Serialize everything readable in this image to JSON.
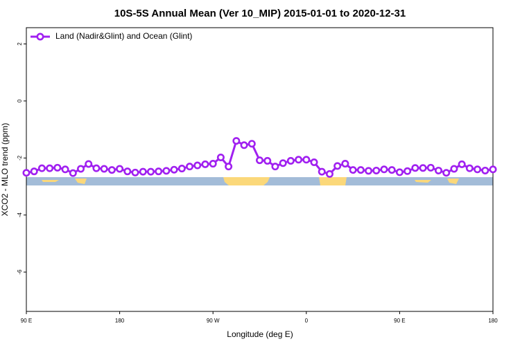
{
  "chart_data": {
    "type": "line",
    "title": "10S-5S Annual Mean (Ver 10_MIP)   2015-01-01 to 2020-12-31",
    "x_label": "Longitude (deg E)",
    "y_label": "XCO2 - MLO trend (ppm)",
    "x": [
      90,
      97.5,
      105,
      112.5,
      120,
      127.5,
      135,
      142.5,
      150,
      157.5,
      165,
      172.5,
      180,
      187.5,
      195,
      202.5,
      210,
      217.5,
      225,
      232.5,
      240,
      247.5,
      255,
      262.5,
      270,
      277.5,
      285,
      292.5,
      300,
      307.5,
      315,
      322.5,
      330,
      337.5,
      345,
      352.5,
      360,
      367.5,
      375,
      382.5,
      390,
      397.5,
      405,
      412.5,
      420,
      427.5,
      435,
      442.5,
      450,
      457.5,
      465,
      472.5,
      480,
      487.5,
      495,
      502.5,
      510,
      517.5,
      525,
      532.5,
      540
    ],
    "series": [
      {
        "name": "Land (Nadir&Glint) and Ocean (Glint)",
        "color": "#a020f0",
        "values": [
          -2.52,
          -2.47,
          -2.36,
          -2.36,
          -2.34,
          -2.4,
          -2.53,
          -2.38,
          -2.21,
          -2.36,
          -2.38,
          -2.42,
          -2.38,
          -2.47,
          -2.51,
          -2.48,
          -2.48,
          -2.47,
          -2.45,
          -2.41,
          -2.37,
          -2.3,
          -2.26,
          -2.22,
          -2.2,
          -1.98,
          -2.3,
          -1.4,
          -1.55,
          -1.5,
          -2.08,
          -2.1,
          -2.3,
          -2.18,
          -2.1,
          -2.06,
          -2.06,
          -2.15,
          -2.48,
          -2.56,
          -2.28,
          -2.2,
          -2.42,
          -2.42,
          -2.45,
          -2.44,
          -2.4,
          -2.42,
          -2.5,
          -2.46,
          -2.35,
          -2.35,
          -2.34,
          -2.44,
          -2.52,
          -2.38,
          -2.22,
          -2.36,
          -2.4,
          -2.44,
          -2.4
        ]
      }
    ],
    "xlim": [
      90,
      540
    ],
    "xticks": [
      {
        "value": 90,
        "label": "90 E"
      },
      180,
      {
        "value": 270,
        "label": "90 W"
      },
      {
        "value": 360,
        "label": "0"
      },
      {
        "value": 450,
        "label": "90 E"
      },
      {
        "value": 540,
        "label": "180"
      }
    ],
    "ylim": [
      -7.38,
      2.57
    ],
    "yticks": [
      2,
      0,
      -2,
      -4,
      -6
    ],
    "legend": "top-left"
  }
}
